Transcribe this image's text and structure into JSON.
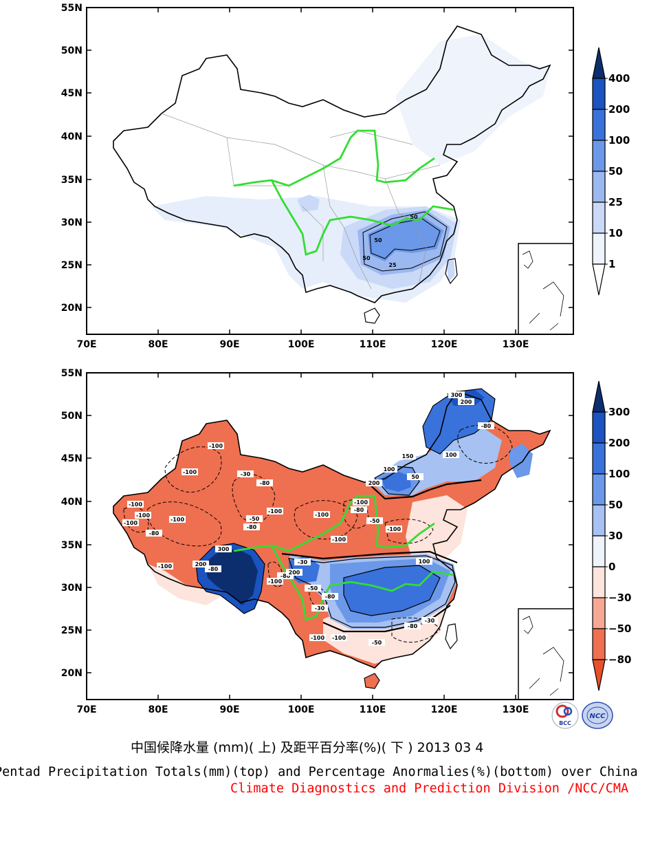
{
  "lon_ticks": [
    "70E",
    "80E",
    "90E",
    "100E",
    "110E",
    "120E",
    "130E"
  ],
  "lat_ticks": [
    "55N",
    "50N",
    "45N",
    "40N",
    "35N",
    "30N",
    "25N",
    "20N"
  ],
  "top_map": {
    "legend_levels": [
      "400",
      "200",
      "100",
      "50",
      "25",
      "10",
      "1"
    ],
    "legend_colors": [
      "#0d2e6e",
      "#1b53c0",
      "#3a72dc",
      "#6b98e8",
      "#9bb8f0",
      "#c9d9f7",
      "#eef3fc"
    ],
    "contour_labels": [
      "50",
      "50",
      "50",
      "25"
    ]
  },
  "bottom_map": {
    "legend_levels": [
      "300",
      "200",
      "100",
      "50",
      "30",
      "0",
      "−30",
      "−50",
      "−80"
    ],
    "legend_colors": [
      "#0d2e6e",
      "#1b53c0",
      "#3a72dc",
      "#6b98e8",
      "#a6c1f2",
      "#eef3fc",
      "#fde4dc",
      "#f6a894",
      "#ee7050",
      "#e8502a"
    ],
    "contour_labels": [
      "300",
      "200",
      "-80",
      "100",
      "-100",
      "150",
      "100",
      "200",
      "-100",
      "-80",
      "-30",
      "-100",
      "-100",
      "-100",
      "-80",
      "-100",
      "-50",
      "-100",
      "-80",
      "-100",
      "300",
      "200",
      "-100",
      "-80",
      "-80",
      "-100",
      "-30",
      "100",
      "200",
      "50",
      "-100",
      "-80",
      "-50",
      "-100",
      "-50",
      "-100",
      "-80",
      "-30",
      "-100",
      "-50",
      "-80",
      "-30",
      "-100"
    ]
  },
  "caption_cn": "中国候降水量 (mm)( 上) 及距平百分率(%)( 下 ) 2013 03 4",
  "caption_en": "Pentad Precipitation Totals(mm)(top) and Percentage Anormalies(%)(bottom) over China",
  "caption_org": "Climate Diagnostics and Prediction Division /NCC/CMA",
  "logo_left_text": "BCC",
  "logo_right_text": "NCC"
}
